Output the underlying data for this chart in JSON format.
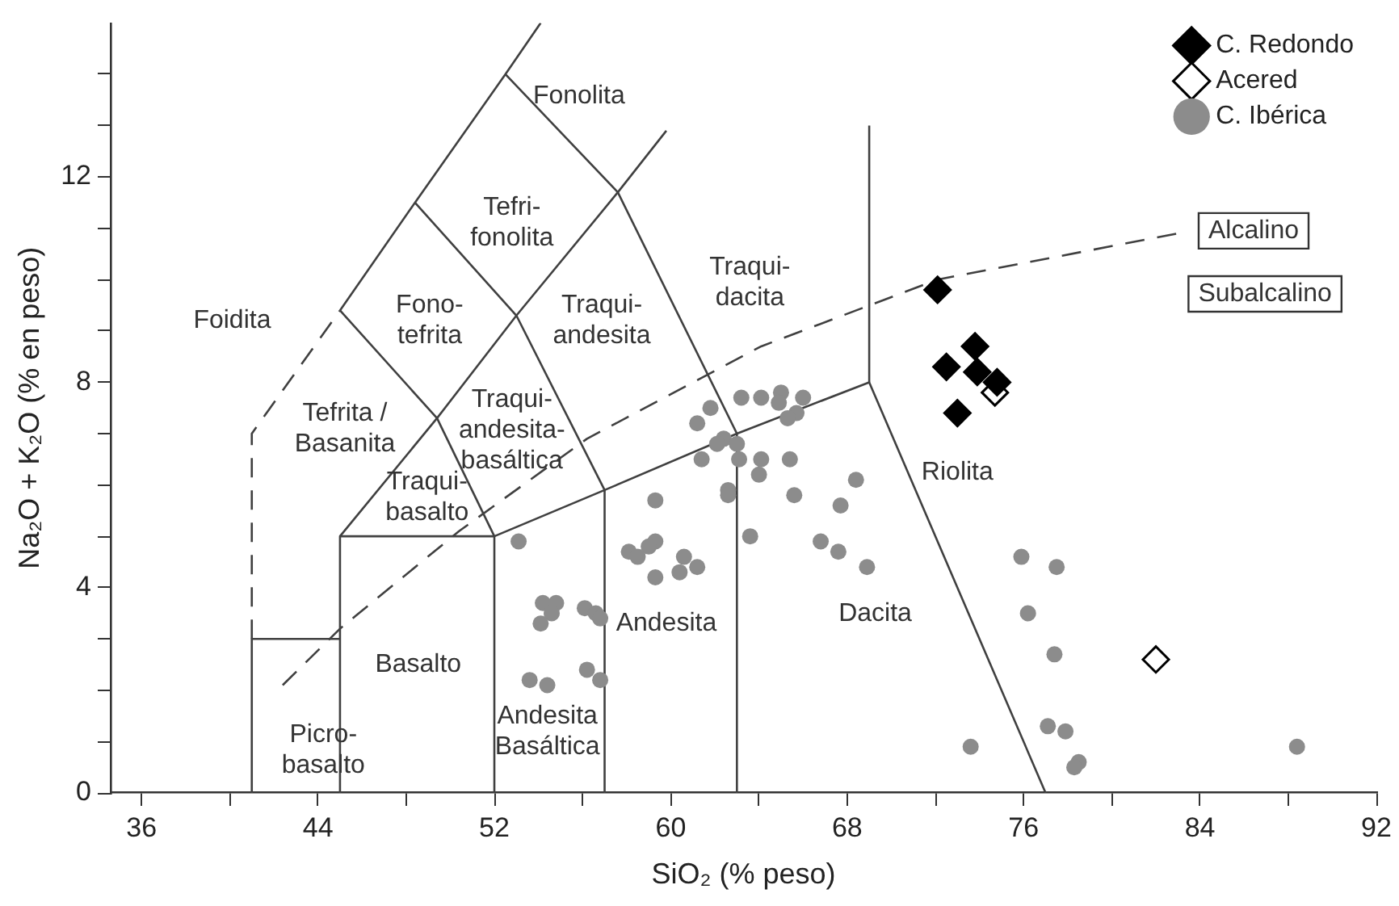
{
  "chart_data": {
    "type": "scatter",
    "xlabel": "SiO₂ (% peso)",
    "ylabel": "Na₂O + K₂O (% en peso)",
    "xlim": [
      34.6,
      92
    ],
    "ylim": [
      0,
      15
    ],
    "xticks": [
      36,
      {
        "value": 40,
        "label": null
      },
      44,
      {
        "value": 48,
        "label": null
      },
      52,
      {
        "value": 56,
        "label": null
      },
      60,
      {
        "value": 64,
        "label": null
      },
      68,
      {
        "value": 72,
        "label": null
      },
      76,
      {
        "value": 80,
        "label": null
      },
      84,
      {
        "value": 88,
        "label": null
      },
      92
    ],
    "yticks": [
      0,
      {
        "value": 1,
        "label": null
      },
      {
        "value": 2,
        "label": null
      },
      {
        "value": 3,
        "label": null
      },
      4,
      {
        "value": 5,
        "label": null
      },
      {
        "value": 6,
        "label": null
      },
      {
        "value": 7,
        "label": null
      },
      8,
      {
        "value": 9,
        "label": null
      },
      {
        "value": 10,
        "label": null
      },
      {
        "value": 11,
        "label": null
      },
      12,
      {
        "value": 13,
        "label": null
      },
      {
        "value": 14,
        "label": null
      }
    ],
    "grid": false,
    "legend": "top right",
    "series": [
      {
        "type": "line",
        "color": "#404040",
        "line_style": "solid",
        "marker": "none",
        "x": [
          41,
          41,
          45
        ],
        "values": [
          0,
          3,
          3
        ]
      },
      {
        "type": "line",
        "color": "#404040",
        "line_style": "solid",
        "marker": "none",
        "x": [
          45,
          45,
          52,
          52
        ],
        "values": [
          0,
          5,
          5,
          0
        ]
      },
      {
        "type": "line",
        "color": "#404040",
        "line_style": "solid",
        "marker": "none",
        "x": [
          52,
          57,
          63,
          69,
          77
        ],
        "values": [
          5,
          5.9,
          7,
          8,
          0
        ]
      },
      {
        "type": "line",
        "color": "#404040",
        "line_style": "solid",
        "marker": "none",
        "x": [
          57,
          57
        ],
        "values": [
          0,
          5.9
        ]
      },
      {
        "type": "line",
        "color": "#404040",
        "line_style": "solid",
        "marker": "none",
        "x": [
          63,
          63
        ],
        "values": [
          0,
          7
        ]
      },
      {
        "type": "line",
        "color": "#404040",
        "line_style": "solid",
        "marker": "none",
        "x": [
          69,
          69
        ],
        "values": [
          8,
          13
        ]
      },
      {
        "type": "line",
        "color": "#404040",
        "line_style": "solid",
        "marker": "none",
        "x": [
          45,
          49.4,
          53,
          57.6,
          59.8
        ],
        "values": [
          5,
          7.3,
          9.3,
          11.7,
          12.9
        ]
      },
      {
        "type": "line",
        "color": "#404040",
        "line_style": "solid",
        "marker": "none",
        "x": [
          52,
          49.4,
          45
        ],
        "values": [
          5,
          7.3,
          9.4
        ]
      },
      {
        "type": "line",
        "color": "#404040",
        "line_style": "solid",
        "marker": "none",
        "x": [
          57,
          53,
          48.4
        ],
        "values": [
          5.9,
          9.3,
          11.5
        ]
      },
      {
        "type": "line",
        "color": "#404040",
        "line_style": "solid",
        "marker": "none",
        "x": [
          63,
          57.6,
          52.5
        ],
        "values": [
          7,
          11.7,
          14
        ]
      },
      {
        "type": "line",
        "color": "#404040",
        "line_style": "solid",
        "marker": "none",
        "x": [
          45,
          48.4,
          52.5,
          54.1
        ],
        "values": [
          9.4,
          11.5,
          14,
          15
        ]
      },
      {
        "type": "line",
        "color": "#404040",
        "line_style": "dashed",
        "marker": "none",
        "x": [
          41,
          41,
          45
        ],
        "values": [
          3,
          7,
          9.4
        ]
      },
      {
        "type": "line",
        "color": "#404040",
        "line_style": "dashed",
        "marker": "none",
        "x": [
          42.4,
          45,
          50.4,
          56.2,
          64.1,
          72.1,
          83
        ],
        "values": [
          2.1,
          3.2,
          5.1,
          6.9,
          8.7,
          10,
          10.9
        ]
      },
      {
        "name": "C. Redondo",
        "color": "#000000",
        "marker": "diamond",
        "x": [
          72.1,
          73.8,
          72.5,
          73.9,
          74.8,
          73
        ],
        "values": [
          9.8,
          8.7,
          8.3,
          8.2,
          8,
          7.4
        ]
      },
      {
        "name": "Acered",
        "color": "#ffffff",
        "marker": "diamond",
        "x": [
          82,
          74.7
        ],
        "values": [
          2.6,
          7.8
        ]
      },
      {
        "name": "C. Ibérica",
        "color": "#8c8c8c",
        "marker": "circle",
        "x": [
          61.8,
          63.2,
          64.1,
          65,
          64.9,
          66,
          65.7,
          65.3,
          61.2,
          62.4,
          62.1,
          63,
          63.1,
          61.4,
          64.1,
          65.4,
          64,
          68.4,
          62.6,
          62.6,
          65.6,
          67.7,
          59.3,
          63.6,
          66.8,
          67.6,
          68.9,
          53.1,
          59.3,
          59,
          58.1,
          58.5,
          60.6,
          61.2,
          60.4,
          59.3,
          54.2,
          54.8,
          54.6,
          54.1,
          56.1,
          56.6,
          56.8,
          56.2,
          56.8,
          53.6,
          54.4,
          75.9,
          77.5,
          76.2,
          77.4,
          77.1,
          77.9,
          78.5,
          78.3,
          73.6,
          88.4
        ],
        "values": [
          7.5,
          7.7,
          7.7,
          7.8,
          7.6,
          7.7,
          7.4,
          7.3,
          7.2,
          6.9,
          6.8,
          6.8,
          6.5,
          6.5,
          6.5,
          6.5,
          6.2,
          6.1,
          5.9,
          5.8,
          5.8,
          5.6,
          5.7,
          5,
          4.9,
          4.7,
          4.4,
          4.9,
          4.9,
          4.8,
          4.7,
          4.6,
          4.6,
          4.4,
          4.3,
          4.2,
          3.7,
          3.7,
          3.5,
          3.3,
          3.6,
          3.5,
          3.4,
          2.4,
          2.2,
          2.2,
          2.1,
          4.6,
          4.4,
          3.5,
          2.7,
          1.3,
          1.2,
          0.6,
          0.5,
          0.9,
          0.9
        ]
      }
    ],
    "annotations": [
      "Foidita",
      "Fonolita",
      "Tefri-\nfonolita",
      "Fono-\ntefrita",
      "Traqui-\nandesita",
      "Traqui-\ndacita",
      "Tefrita /\nBasanita",
      "Traqui-\nandesita-\nbasáltica",
      "Traqui-\nbasalto",
      "Basalto",
      "Picro-\nbasalto",
      "Andesita",
      "Andesita\nBasáltica",
      "Dacita",
      "Riolita",
      "Alcalino",
      "Subalcalino"
    ]
  }
}
